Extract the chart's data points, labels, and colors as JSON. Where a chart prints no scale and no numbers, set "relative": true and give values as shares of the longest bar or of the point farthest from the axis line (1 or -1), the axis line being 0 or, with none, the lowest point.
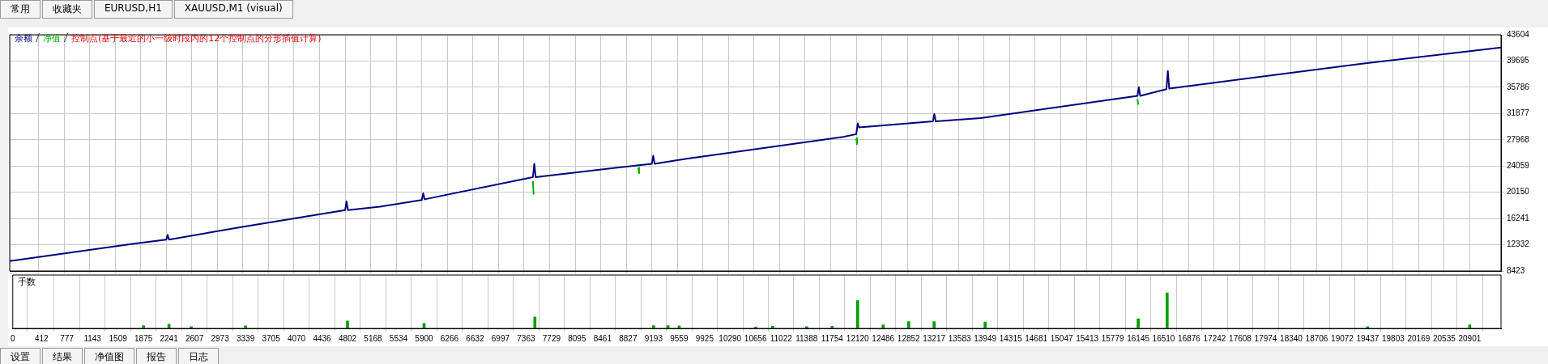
{
  "chart_data": [
    {
      "type": "other",
      "annotations": [
        "常用",
        "收藏夹",
        "EURUSD,H1",
        "XAUUSD,M1 (visual)"
      ]
    },
    {
      "type": "line",
      "legend": "top left",
      "grid": true,
      "tick_labels": "y",
      "marker": "none",
      "line_style": "solid",
      "annotations": [
        "控制点(基于最近的小一级时段内的12个控制点的分形插值计算)"
      ],
      "xlim": [
        0,
        21350
      ],
      "xticks": [
        0,
        412,
        777,
        1143,
        1509,
        1875,
        2241,
        2607,
        2973,
        3339,
        3705,
        4070,
        4436,
        4802,
        5168,
        5534,
        5900,
        6266,
        6632,
        6997,
        7363,
        7729,
        8095,
        8461,
        8827,
        9193,
        9559,
        9925,
        10290,
        10656,
        11022,
        11388,
        11754,
        12120,
        12486,
        12852,
        13217,
        13583,
        13949,
        14315,
        14681,
        15047,
        15413,
        15779,
        16145,
        16510,
        16876,
        17242,
        17608,
        17974,
        18340,
        18706,
        19072,
        19437,
        19803,
        20169,
        20535,
        20901
      ],
      "ylim": [
        8423,
        43604
      ],
      "yticks": [
        8423,
        12332,
        16241,
        20150,
        24059,
        27968,
        31877,
        35786,
        39695,
        43604
      ],
      "series": [
        {
          "name": "余额",
          "color": "#000080",
          "x": [
            0,
            1780,
            2241,
            2261,
            2281,
            3330,
            4802,
            4822,
            4842,
            5300,
            5900,
            5920,
            5940,
            7490,
            7510,
            7530,
            9193,
            9213,
            9233,
            9670,
            11930,
            12120,
            12140,
            12160,
            13217,
            13237,
            13257,
            13900,
            16145,
            16165,
            16185,
            16560,
            16580,
            16600,
            19360,
            21350
          ],
          "values": [
            9900,
            12500,
            13100,
            13800,
            13100,
            15000,
            17500,
            18800,
            17500,
            18000,
            19000,
            20000,
            19100,
            22400,
            24400,
            22400,
            24400,
            25600,
            24400,
            25100,
            28400,
            28800,
            30400,
            29800,
            30700,
            31800,
            30700,
            31200,
            34500,
            35800,
            34500,
            35500,
            38200,
            35600,
            39300,
            41700
          ]
        },
        {
          "name": "净值",
          "color": "#00b000",
          "x": [
            7490,
            7500,
            7510,
            9000,
            9010,
            9020,
            12120,
            12130,
            12140,
            16145,
            16155
          ],
          "values": [
            21800,
            19800,
            null,
            23800,
            23000,
            null,
            28200,
            27300,
            null,
            34000,
            33200
          ]
        }
      ]
    },
    {
      "type": "bar",
      "title": "手数",
      "relative": true,
      "grid": "x",
      "tick_labels": "x",
      "color": "#00a000",
      "xlim": [
        0,
        21350
      ],
      "xticks": [
        0,
        412,
        777,
        1143,
        1509,
        1875,
        2241,
        2607,
        2973,
        3339,
        3705,
        4070,
        4436,
        4802,
        5168,
        5534,
        5900,
        6266,
        6632,
        6997,
        7363,
        7729,
        8095,
        8461,
        8827,
        9193,
        9559,
        9925,
        10290,
        10656,
        11022,
        11388,
        11754,
        12120,
        12486,
        12852,
        13217,
        13583,
        13949,
        14315,
        14681,
        15047,
        15413,
        15779,
        16145,
        16510,
        16876,
        17242,
        17608,
        17974,
        18340,
        18706,
        19072,
        19437,
        19803,
        20169,
        20535,
        20901
      ],
      "x": [
        1875,
        2241,
        2560,
        3339,
        4802,
        5900,
        7490,
        9193,
        9400,
        9560,
        10656,
        10900,
        11388,
        11754,
        12120,
        12486,
        12852,
        13217,
        13949,
        16145,
        16560,
        19437,
        20901
      ],
      "values": [
        0.08,
        0.12,
        0.05,
        0.07,
        0.21,
        0.14,
        0.32,
        0.08,
        0.08,
        0.07,
        0.04,
        0.06,
        0.05,
        0.06,
        0.78,
        0.1,
        0.19,
        0.19,
        0.18,
        0.27,
        1,
        0.05,
        0.1
      ]
    },
    {
      "type": "other",
      "annotations": [
        "设置",
        "结果",
        "净值图",
        "报告",
        "日志"
      ]
    }
  ]
}
